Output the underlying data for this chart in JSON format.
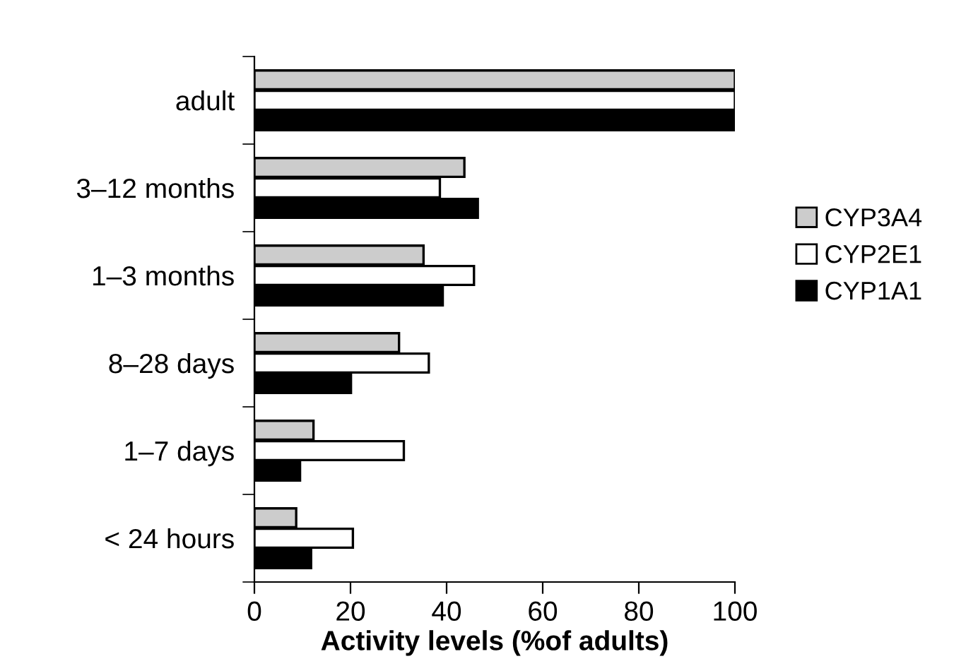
{
  "chart_data": {
    "type": "bar",
    "orientation": "horizontal",
    "xlabel": "Activity levels (%of adults)",
    "categories": [
      "adult",
      "3–12 months",
      "1–3 months",
      "8–28 days",
      "1–7 days",
      "< 24 hours"
    ],
    "series": [
      {
        "name": "CYP3A4",
        "color": "#cccccc",
        "values": [
          100,
          43.7,
          35.2,
          30.1,
          12.3,
          8.7
        ]
      },
      {
        "name": "CYP2E1",
        "color": "#ffffff",
        "values": [
          100,
          38.6,
          45.7,
          36.3,
          31.1,
          20.5
        ]
      },
      {
        "name": "CYP1A1",
        "color": "#000000",
        "values": [
          100,
          46.5,
          39.2,
          20.1,
          9.5,
          11.8
        ]
      }
    ],
    "xlim": [
      0,
      100
    ],
    "xticks": [
      0,
      20,
      40,
      60,
      80,
      100
    ],
    "grid": false,
    "legend": "right"
  }
}
